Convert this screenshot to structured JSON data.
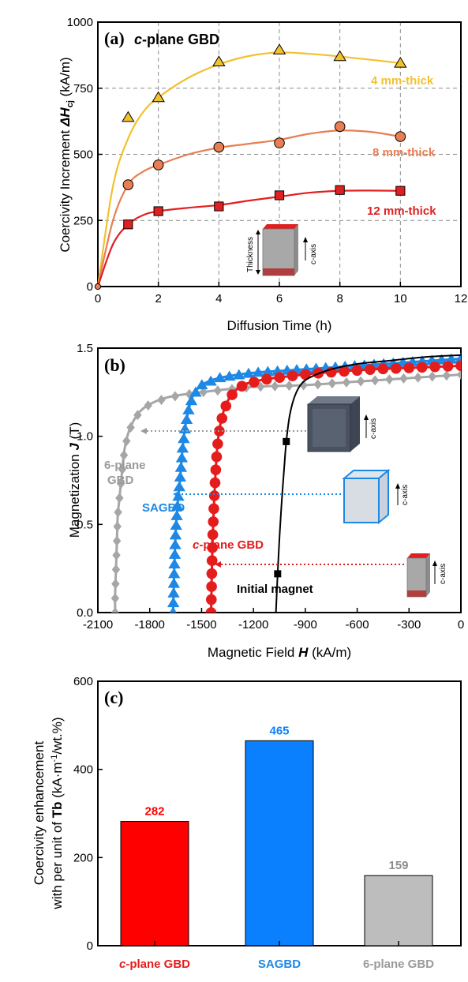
{
  "chart_data": [
    {
      "panel": "(a)",
      "type": "line",
      "title": "c-plane GBD",
      "xlabel": "Diffusion Time (h)",
      "ylabel": "Coercivity Increment ΔH_cj (kA/m)",
      "xlim": [
        0,
        12
      ],
      "ylim": [
        0,
        1000
      ],
      "xticks": [
        "0",
        "2",
        "4",
        "6",
        "8",
        "10",
        "12"
      ],
      "yticks": [
        "0",
        "250",
        "500",
        "750",
        "1000"
      ],
      "grid": true,
      "series": [
        {
          "name": "4 mm-thick",
          "color": "#f2c12e",
          "marker": "triangle",
          "x": [
            0,
            1,
            2,
            4,
            6,
            8,
            10
          ],
          "y": [
            0,
            640,
            715,
            850,
            895,
            870,
            845
          ],
          "fit": [
            [
              0,
              0
            ],
            [
              0.5,
              380
            ],
            [
              1,
              560
            ],
            [
              1.5,
              660
            ],
            [
              2,
              715
            ],
            [
              3,
              790
            ],
            [
              4,
              840
            ],
            [
              5,
              872
            ],
            [
              6,
              885
            ],
            [
              7,
              880
            ],
            [
              8,
              870
            ],
            [
              9,
              858
            ],
            [
              10,
              845
            ]
          ]
        },
        {
          "name": "8 mm-thick",
          "color": "#e87e54",
          "marker": "circle",
          "x": [
            0,
            1,
            2,
            4,
            6,
            8,
            10
          ],
          "y": [
            0,
            385,
            460,
            527,
            543,
            605,
            567
          ],
          "fit": [
            [
              0,
              0
            ],
            [
              0.5,
              250
            ],
            [
              1,
              385
            ],
            [
              1.5,
              435
            ],
            [
              2,
              460
            ],
            [
              3,
              500
            ],
            [
              4,
              525
            ],
            [
              5,
              540
            ],
            [
              6,
              555
            ],
            [
              7,
              578
            ],
            [
              8,
              590
            ],
            [
              9,
              585
            ],
            [
              10,
              567
            ]
          ]
        },
        {
          "name": "12 mm-thick",
          "color": "#e02020",
          "marker": "square",
          "x": [
            0,
            1,
            2,
            4,
            6,
            8,
            10
          ],
          "y": [
            0,
            235,
            285,
            303,
            345,
            365,
            362
          ],
          "fit": [
            [
              0,
              0
            ],
            [
              0.5,
              160
            ],
            [
              1,
              235
            ],
            [
              1.5,
              270
            ],
            [
              2,
              285
            ],
            [
              3,
              298
            ],
            [
              4,
              308
            ],
            [
              5,
              325
            ],
            [
              6,
              340
            ],
            [
              7,
              355
            ],
            [
              8,
              362
            ],
            [
              9,
              363
            ],
            [
              10,
              362
            ]
          ]
        }
      ],
      "inset": {
        "thickness_label": "Thickness",
        "axis_label": "c-axis"
      }
    },
    {
      "panel": "(b)",
      "type": "scatter",
      "xlabel": "Magnetic Field H (kA/m)",
      "ylabel": "Magnetization J (T)",
      "xlim": [
        -2100,
        0
      ],
      "ylim": [
        0,
        1.5
      ],
      "xticks": [
        "-2100",
        "-1800",
        "-1500",
        "-1200",
        "-900",
        "-600",
        "-300",
        "0"
      ],
      "yticks": [
        "0.0",
        "0.5",
        "1.0",
        "1.5"
      ],
      "series": [
        {
          "name": "6-plane GBD",
          "color": "#a6a6a6",
          "marker": "diamond",
          "curve": [
            [
              -2000,
              0
            ],
            [
              -2000,
              0.1
            ],
            [
              -1995,
              0.25
            ],
            [
              -1990,
              0.4
            ],
            [
              -1985,
              0.55
            ],
            [
              -1975,
              0.65
            ],
            [
              -1960,
              0.8
            ],
            [
              -1945,
              0.93
            ],
            [
              -1920,
              1.03
            ],
            [
              -1880,
              1.11
            ],
            [
              -1820,
              1.17
            ],
            [
              -1700,
              1.22
            ],
            [
              -1500,
              1.25
            ],
            [
              -1200,
              1.28
            ],
            [
              -900,
              1.29
            ],
            [
              -600,
              1.31
            ],
            [
              -300,
              1.33
            ],
            [
              0,
              1.35
            ]
          ]
        },
        {
          "name": "SAGBD",
          "color": "#1e88e5",
          "marker": "triangle",
          "curve": [
            [
              -1665,
              0
            ],
            [
              -1662,
              0.1
            ],
            [
              -1658,
              0.25
            ],
            [
              -1650,
              0.45
            ],
            [
              -1640,
              0.6
            ],
            [
              -1625,
              0.75
            ],
            [
              -1610,
              0.93
            ],
            [
              -1595,
              1.05
            ],
            [
              -1575,
              1.15
            ],
            [
              -1550,
              1.23
            ],
            [
              -1500,
              1.29
            ],
            [
              -1400,
              1.33
            ],
            [
              -1200,
              1.36
            ],
            [
              -900,
              1.38
            ],
            [
              -600,
              1.4
            ],
            [
              -300,
              1.42
            ],
            [
              0,
              1.44
            ]
          ]
        },
        {
          "name": "c-plane GBD",
          "color": "#e51c1c",
          "marker": "circle",
          "curve": [
            [
              -1445,
              0
            ],
            [
              -1443,
              0.1
            ],
            [
              -1440,
              0.27
            ],
            [
              -1435,
              0.45
            ],
            [
              -1428,
              0.62
            ],
            [
              -1420,
              0.78
            ],
            [
              -1410,
              0.93
            ],
            [
              -1395,
              1.05
            ],
            [
              -1370,
              1.15
            ],
            [
              -1330,
              1.23
            ],
            [
              -1260,
              1.29
            ],
            [
              -1150,
              1.32
            ],
            [
              -1000,
              1.34
            ],
            [
              -800,
              1.36
            ],
            [
              -500,
              1.38
            ],
            [
              -250,
              1.39
            ],
            [
              0,
              1.4
            ]
          ]
        },
        {
          "name": "Initial magnet",
          "color": "#000000",
          "marker": "square",
          "curve": [
            [
              -1070,
              0
            ],
            [
              -1060,
              0.22
            ],
            [
              -1048,
              0.45
            ],
            [
              -1035,
              0.65
            ],
            [
              -1020,
              0.85
            ],
            [
              -1010,
              0.97
            ],
            [
              -990,
              1.12
            ],
            [
              -960,
              1.23
            ],
            [
              -920,
              1.3
            ],
            [
              -860,
              1.34
            ],
            [
              -750,
              1.38
            ],
            [
              -600,
              1.41
            ],
            [
              -400,
              1.43
            ],
            [
              -200,
              1.45
            ],
            [
              0,
              1.46
            ]
          ],
          "points": [
            [
              -1060,
              0.22
            ],
            [
              -1010,
              0.97
            ]
          ]
        }
      ],
      "inset_label": "c-axis"
    },
    {
      "panel": "(c)",
      "type": "bar",
      "ylabel": "Coercivity enhancement with per unit of Tb (kA·m⁻¹/wt.%)",
      "ylim": [
        0,
        600
      ],
      "yticks": [
        "0",
        "200",
        "400",
        "600"
      ],
      "categories": [
        "c-plane GBD",
        "SAGBD",
        "6-plane GBD"
      ],
      "values": [
        282,
        465,
        159
      ],
      "value_labels": [
        "282",
        "465",
        "159"
      ],
      "colors": [
        "#ff0000",
        "#0a80ff",
        "#bdbdbd"
      ]
    }
  ]
}
